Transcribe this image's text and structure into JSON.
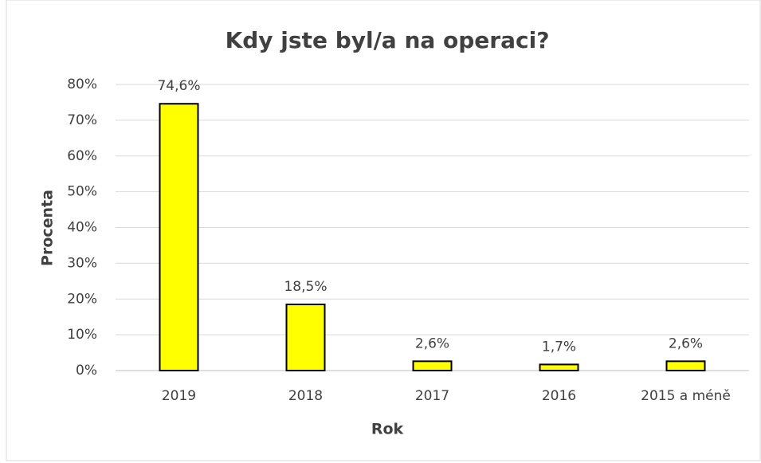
{
  "chart_data": {
    "type": "bar",
    "title": "Kdy jste byl/a na operaci?",
    "x_label": "Rok",
    "y_label": "Procenta",
    "categories": [
      "2019",
      "2018",
      "2017",
      "2016",
      "2015 a méně"
    ],
    "values": [
      74.6,
      18.5,
      2.6,
      1.7,
      2.6
    ],
    "value_labels": [
      "74,6%",
      "18,5%",
      "2,6%",
      "1,7%",
      "2,6%"
    ],
    "color": "#ffff00",
    "ylim": [
      0,
      80
    ],
    "yticks": [
      {
        "value": 0,
        "label": "0%"
      },
      {
        "value": 10,
        "label": "10%"
      },
      {
        "value": 20,
        "label": "20%"
      },
      {
        "value": 30,
        "label": "30%"
      },
      {
        "value": 40,
        "label": "40%"
      },
      {
        "value": 50,
        "label": "50%"
      },
      {
        "value": 60,
        "label": "60%"
      },
      {
        "value": 70,
        "label": "70%"
      },
      {
        "value": 80,
        "label": "80%"
      }
    ],
    "grid": true
  }
}
